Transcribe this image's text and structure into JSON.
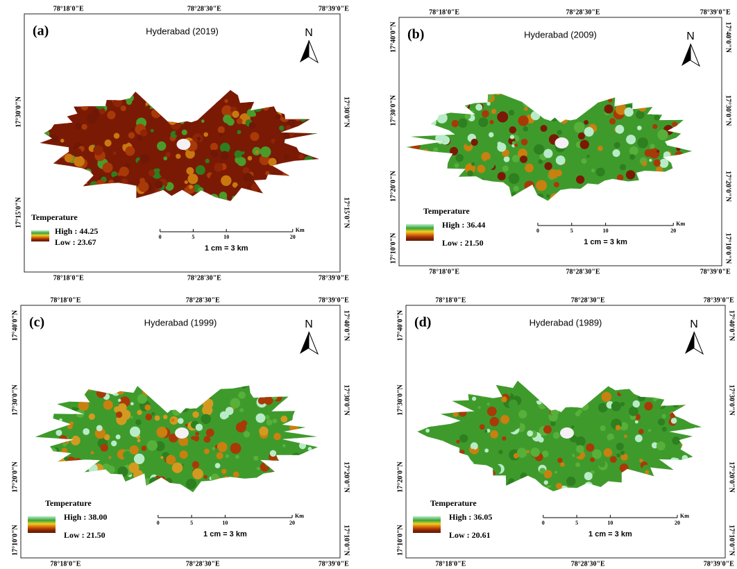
{
  "panels": [
    {
      "label": "(a)",
      "title": "Hyderabad (2019)",
      "north": "N",
      "top": [
        "78°18'0\"E",
        "78°28'30\"E",
        "78°39'0\"E"
      ],
      "bottom": [
        "78°18'0\"E",
        "78°28'30\"E",
        "78°39'0\"E"
      ],
      "left": [
        "17°30'0\"N",
        "17°15'0\"N"
      ],
      "right": [
        "17°30'0\"N",
        "17°15'0\"N"
      ],
      "legend": {
        "title": "Temperature",
        "high": "High : 44.25",
        "low": "Low : 23.67"
      },
      "scale": {
        "ticks": [
          "0",
          "5",
          "10",
          "20"
        ],
        "unit": "Km",
        "text": "1 cm = 3 km"
      }
    },
    {
      "label": "(b)",
      "title": "Hyderabad (2009)",
      "north": "N",
      "top": [
        "78°18'0\"E",
        "78°28'30\"E",
        "78°39'0\"E"
      ],
      "bottom": [
        "78°18'0\"E",
        "78°28'30\"E",
        "78°39'0\"E"
      ],
      "left": [
        "17°40'0\"N",
        "17°30'0\"N",
        "17°20'0\"N",
        "17°10'0\"N"
      ],
      "right": [
        "17°40'0\"N",
        "17°30'0\"N",
        "17°20'0\"N",
        "17°10'0\"N"
      ],
      "legend": {
        "title": "Temperature",
        "high": "High : 36.44",
        "low": "Low : 21.50"
      },
      "scale": {
        "ticks": [
          "0",
          "5",
          "10",
          "20"
        ],
        "unit": "Km",
        "text": "1 cm = 3 km"
      }
    },
    {
      "label": "(c)",
      "title": "Hyderabad (1999)",
      "north": "N",
      "top": [
        "78°18'0\"E",
        "78°28'30\"E",
        "78°39'0\"E"
      ],
      "bottom": [
        "78°18'0\"E",
        "78°28'30\"E",
        "78°39'0\"E"
      ],
      "left": [
        "17°40'0\"N",
        "17°30'0\"N",
        "17°20'0\"N",
        "17°10'0\"N"
      ],
      "right": [
        "17°40'0\"N",
        "17°30'0\"N",
        "17°20'0\"N",
        "17°10'0\"N"
      ],
      "legend": {
        "title": "Temperature",
        "high": "High : 38.00",
        "low": "Low : 21.50"
      },
      "scale": {
        "ticks": [
          "0",
          "5",
          "10",
          "20"
        ],
        "unit": "Km",
        "text": "1 cm = 3 km"
      }
    },
    {
      "label": "(d)",
      "title": "Hyderabad (1989)",
      "north": "N",
      "top": [
        "78°18'0\"E",
        "78°28'30\"E",
        "78°39'0\"E"
      ],
      "bottom": [
        "78°18'0\"E",
        "78°28'30\"E",
        "78°39'0\"E"
      ],
      "left": [
        "17°40'0\"N",
        "17°30'0\"N",
        "17°20'0\"N",
        "17°10'0\"N"
      ],
      "right": [
        "17°40'0\"N",
        "17°30'0\"N",
        "17°20'0\"N",
        "17°10'0\"N"
      ],
      "legend": {
        "title": "Temperature",
        "high": "High : 36.05",
        "low": "Low : 20.61"
      },
      "scale": {
        "ticks": [
          "0",
          "5",
          "10",
          "20"
        ],
        "unit": "Km",
        "text": "1 cm = 3 km"
      }
    }
  ]
}
